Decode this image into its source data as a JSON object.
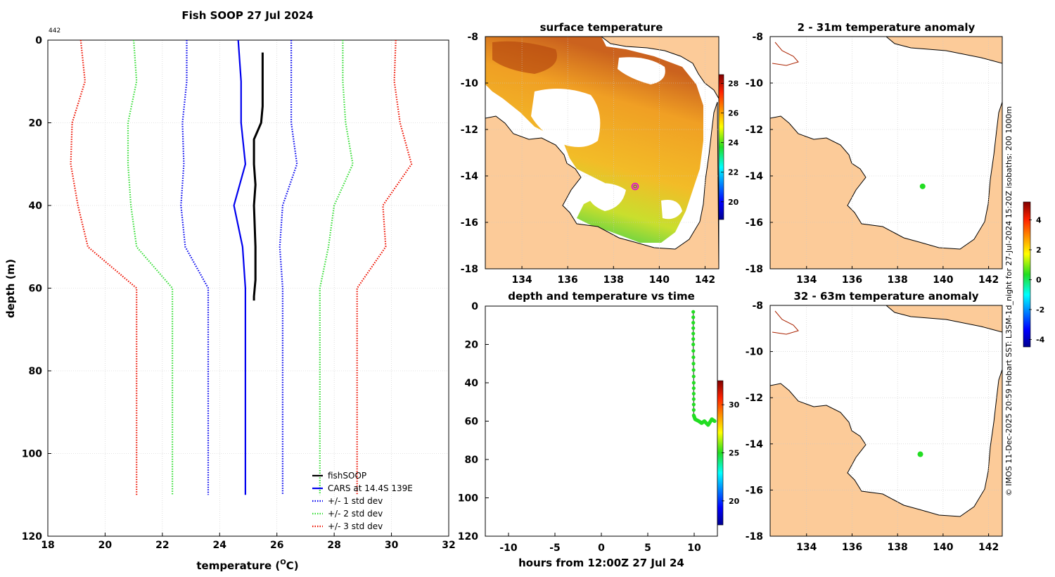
{
  "colors": {
    "black": "#000000",
    "blue": "#0000ee",
    "green": "#33dd33",
    "red": "#ee1100",
    "land": "#fccb99",
    "grid": "#c8c8c8",
    "obs": "#22dd22"
  },
  "chart_data": [
    {
      "id": "profile",
      "type": "line",
      "title": "Fish SOOP 27 Jul 2024",
      "corner_label": "442",
      "xlabel": "temperature (",
      "xlabel_sup": "O",
      "xlabel_end": "C)",
      "ylabel": "depth (m)",
      "xlim": [
        18,
        32
      ],
      "ylim": [
        120,
        0
      ],
      "xticks": [
        "18",
        "20",
        "22",
        "24",
        "26",
        "28",
        "30",
        "32"
      ],
      "yticks": [
        "0",
        "20",
        "40",
        "60",
        "80",
        "100",
        "120"
      ],
      "legend": [
        "fishSOOP",
        "CARS at 14.4S 139E",
        "+/- 1 std dev",
        "+/- 2 std dev",
        "+/- 3 std dev"
      ],
      "depths": [
        0,
        10,
        20,
        30,
        40,
        50,
        60,
        110
      ],
      "series": [
        {
          "name": "fishSOOP",
          "color": "#000000",
          "style": "solid",
          "points": [
            [
              25.5,
              3
            ],
            [
              25.5,
              8
            ],
            [
              25.5,
              12
            ],
            [
              25.5,
              16
            ],
            [
              25.45,
              20
            ],
            [
              25.2,
              24
            ],
            [
              25.2,
              30
            ],
            [
              25.25,
              35
            ],
            [
              25.2,
              40
            ],
            [
              25.25,
              50
            ],
            [
              25.25,
              58
            ],
            [
              25.2,
              62
            ],
            [
              25.2,
              63
            ]
          ]
        },
        {
          "name": "CARS at 14.4S 139E",
          "color": "#0000ee",
          "style": "solid",
          "values": [
            24.65,
            24.75,
            24.75,
            24.9,
            24.5,
            24.8,
            24.9,
            24.9
          ]
        },
        {
          "name": "-1 std",
          "color": "#0000ee",
          "style": "dot",
          "values": [
            22.85,
            22.85,
            22.7,
            22.75,
            22.65,
            22.8,
            23.6,
            23.6
          ]
        },
        {
          "name": "+1 std",
          "color": "#0000ee",
          "style": "dot",
          "values": [
            26.5,
            26.5,
            26.5,
            26.7,
            26.2,
            26.1,
            26.2,
            26.2
          ]
        },
        {
          "name": "-2 std",
          "color": "#33dd33",
          "style": "dot",
          "values": [
            21.0,
            21.1,
            20.8,
            20.8,
            20.9,
            21.1,
            22.35,
            22.35
          ]
        },
        {
          "name": "+2 std",
          "color": "#33dd33",
          "style": "dot",
          "values": [
            28.3,
            28.3,
            28.4,
            28.65,
            28.0,
            27.8,
            27.5,
            27.5
          ]
        },
        {
          "name": "-3 std",
          "color": "#ee1100",
          "style": "dot",
          "values": [
            19.15,
            19.3,
            18.85,
            18.8,
            19.05,
            19.4,
            21.1,
            21.1
          ]
        },
        {
          "name": "+3 std",
          "color": "#ee1100",
          "style": "dot",
          "values": [
            30.15,
            30.1,
            30.3,
            30.7,
            29.7,
            29.8,
            28.8,
            28.8
          ]
        }
      ]
    },
    {
      "id": "sst_map",
      "type": "heatmap",
      "title": "surface temperature",
      "xlim": [
        132.4,
        142.6
      ],
      "ylim": [
        -18,
        -8
      ],
      "xticks": [
        "134",
        "136",
        "138",
        "140",
        "142"
      ],
      "yticks": [
        "-8",
        "-10",
        "-12",
        "-14",
        "-16",
        "-18"
      ],
      "colorbar": {
        "ticks": [
          "28",
          "26",
          "24",
          "22",
          "20"
        ],
        "range": [
          18.8,
          28.6
        ]
      },
      "marker": {
        "lon": 139.0,
        "lat": -14.45
      }
    },
    {
      "id": "time_plot",
      "type": "scatter",
      "title": "depth and temperature vs time",
      "xlabel": "hours from 12:00Z 27 Jul 24",
      "xlim": [
        -12.5,
        12.5
      ],
      "ylim": [
        120,
        0
      ],
      "xticks": [
        "-10",
        "-5",
        "0",
        "5",
        "10"
      ],
      "yticks": [
        "0",
        "20",
        "40",
        "60",
        "80",
        "100",
        "120"
      ],
      "colorbar": {
        "ticks": [
          "30",
          "25",
          "20"
        ],
        "range": [
          17.5,
          32.5
        ]
      },
      "track": [
        [
          9.9,
          3
        ],
        [
          9.9,
          20
        ],
        [
          9.95,
          40
        ],
        [
          9.95,
          57
        ],
        [
          10.1,
          59
        ],
        [
          10.5,
          60
        ],
        [
          10.8,
          61
        ],
        [
          11.1,
          60
        ],
        [
          11.5,
          62
        ],
        [
          11.9,
          59
        ],
        [
          12.2,
          60
        ]
      ]
    },
    {
      "id": "anom_shallow",
      "type": "heatmap",
      "title": "2 - 31m temperature anomaly",
      "xlim": [
        132.4,
        142.6
      ],
      "ylim": [
        -18,
        -8
      ],
      "xticks": [
        "134",
        "136",
        "138",
        "140",
        "142"
      ],
      "yticks": [
        "-8",
        "-10",
        "-12",
        "-14",
        "-16",
        "-18"
      ],
      "point": {
        "lon": 139.1,
        "lat": -14.45
      }
    },
    {
      "id": "anom_deep",
      "type": "heatmap",
      "title": "32 - 63m temperature anomaly",
      "xlim": [
        132.4,
        142.6
      ],
      "ylim": [
        -18,
        -8
      ],
      "xticks": [
        "134",
        "136",
        "138",
        "140",
        "142"
      ],
      "yticks": [
        "-8",
        "-10",
        "-12",
        "-14",
        "-16",
        "-18"
      ],
      "point": {
        "lon": 139.0,
        "lat": -14.45
      },
      "colorbar": {
        "ticks": [
          "4",
          "2",
          "0",
          "-2",
          "-4"
        ],
        "range": [
          -4.5,
          5.2
        ]
      }
    }
  ],
  "credit": "© IMOS 11-Dec-2025 20:59 Hobart SST: L3SM-1d_night for 27-Jul-2024 15:20Z isobaths: 200  1000m"
}
